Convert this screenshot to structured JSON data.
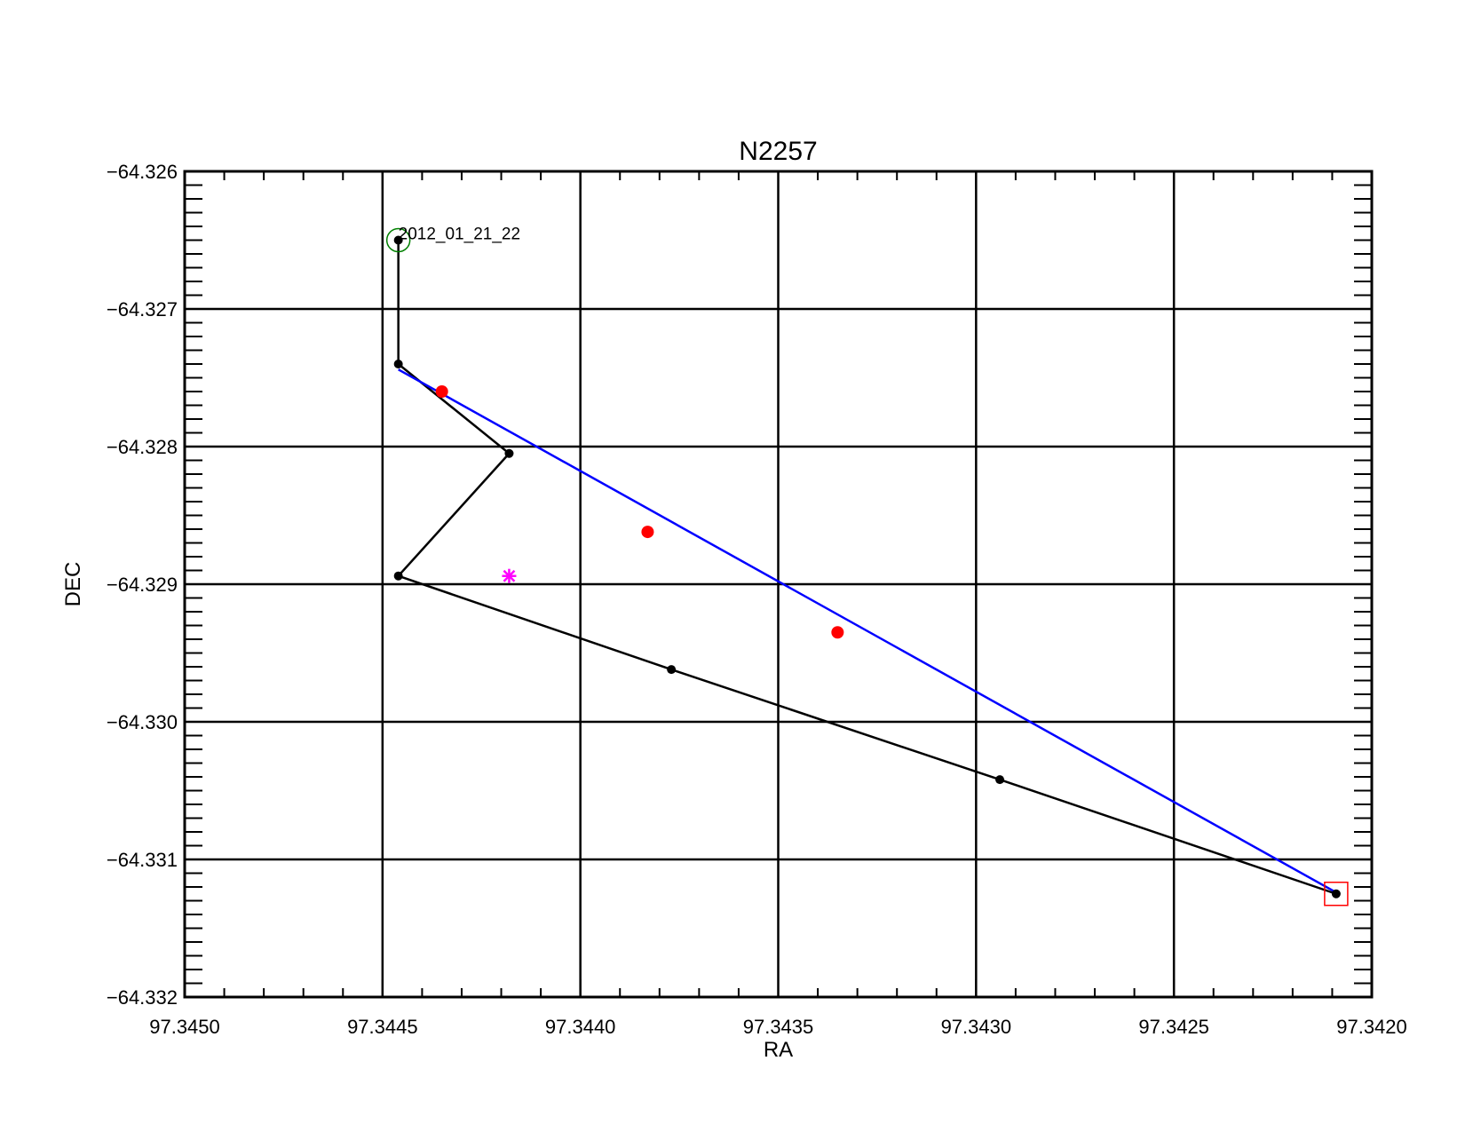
{
  "chart_data": {
    "type": "scatter",
    "title": "N2257",
    "xlabel": "RA",
    "ylabel": "DEC",
    "xlim": [
      97.345,
      97.342
    ],
    "ylim": [
      -64.332,
      -64.326
    ],
    "x_reversed": true,
    "grid": true,
    "x_major_ticks": [
      97.345,
      97.3445,
      97.344,
      97.3435,
      97.343,
      97.3425,
      97.342
    ],
    "x_tick_labels": [
      "97.3450",
      "97.3445",
      "97.3440",
      "97.3435",
      "97.3430",
      "97.3425",
      "97.3420"
    ],
    "y_major_ticks": [
      -64.326,
      -64.327,
      -64.328,
      -64.329,
      -64.33,
      -64.331,
      -64.332
    ],
    "y_tick_labels": [
      "−64.326",
      "−64.327",
      "−64.328",
      "−64.329",
      "−64.330",
      "−64.331",
      "−64.332"
    ],
    "series": [
      {
        "kind": "track",
        "color": "#000000",
        "points": [
          {
            "x": 97.34446,
            "y": -64.3265
          },
          {
            "x": 97.34446,
            "y": -64.3274
          },
          {
            "x": 97.34418,
            "y": -64.32805
          },
          {
            "x": 97.34446,
            "y": -64.32894
          },
          {
            "x": 97.34377,
            "y": -64.32962
          },
          {
            "x": 97.34294,
            "y": -64.33042
          },
          {
            "x": 97.34209,
            "y": -64.33125
          }
        ]
      },
      {
        "kind": "fit-line",
        "color": "#0000ff",
        "points": [
          {
            "x": 97.34446,
            "y": -64.32744
          },
          {
            "x": 97.34209,
            "y": -64.33124
          }
        ]
      },
      {
        "kind": "red-points",
        "color": "#ff0000",
        "points": [
          {
            "x": 97.34435,
            "y": -64.3276
          },
          {
            "x": 97.34383,
            "y": -64.32862
          },
          {
            "x": 97.34335,
            "y": -64.32935
          }
        ]
      }
    ],
    "markers": {
      "start_circle": {
        "x": 97.34446,
        "y": -64.3265,
        "color": "#008000"
      },
      "end_square": {
        "x": 97.34209,
        "y": -64.33125,
        "color": "#ff0000"
      },
      "star": {
        "x": 97.34418,
        "y": -64.32894,
        "color": "#ff00ff"
      }
    },
    "annotation": {
      "text": "2012_01_21_22",
      "x": 97.34446,
      "y": -64.3265
    }
  }
}
